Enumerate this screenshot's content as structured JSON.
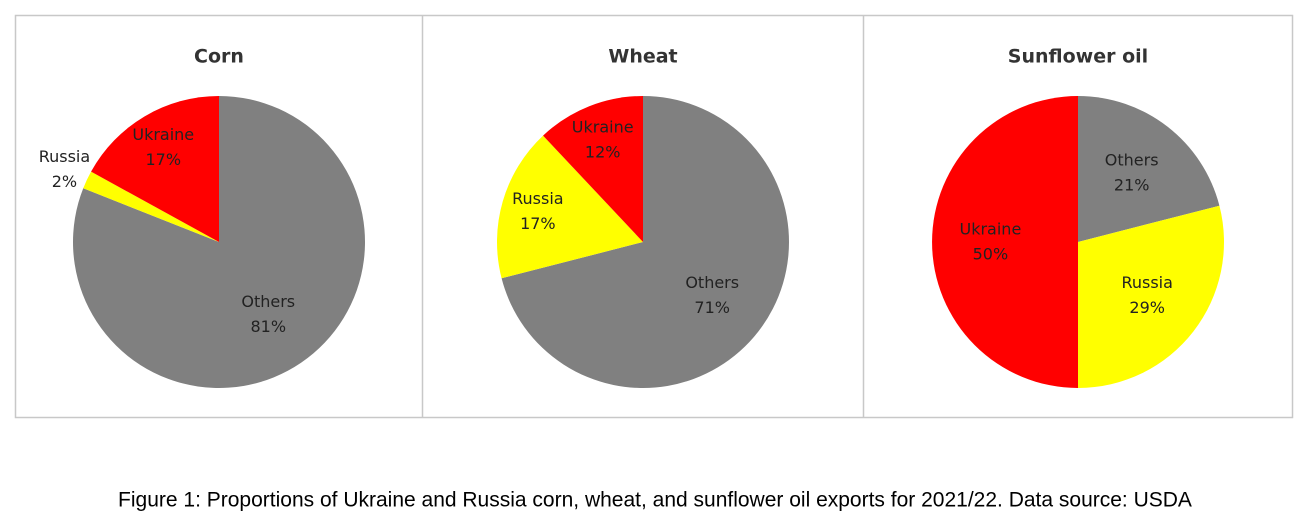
{
  "chart_data": [
    {
      "type": "pie",
      "title": "Corn",
      "categories": [
        "Others",
        "Russia",
        "Ukraine"
      ],
      "values": [
        81,
        2,
        17
      ],
      "value_labels": [
        "81%",
        "2%",
        "17%"
      ],
      "colors": [
        "#808080",
        "#ffff00",
        "#ff0000"
      ]
    },
    {
      "type": "pie",
      "title": "Wheat",
      "categories": [
        "Others",
        "Russia",
        "Ukraine"
      ],
      "values": [
        71,
        17,
        12
      ],
      "value_labels": [
        "71%",
        "17%",
        "12%"
      ],
      "colors": [
        "#808080",
        "#ffff00",
        "#ff0000"
      ]
    },
    {
      "type": "pie",
      "title": "Sunflower oil",
      "categories": [
        "Others",
        "Russia",
        "Ukraine"
      ],
      "values": [
        21,
        29,
        50
      ],
      "value_labels": [
        "21%",
        "29%",
        "50%"
      ],
      "colors": [
        "#808080",
        "#ffff00",
        "#ff0000"
      ]
    }
  ],
  "caption": "Figure 1: Proportions of Ukraine and Russia corn, wheat, and sunflower oil exports for 2021/22. Data source: USDA"
}
